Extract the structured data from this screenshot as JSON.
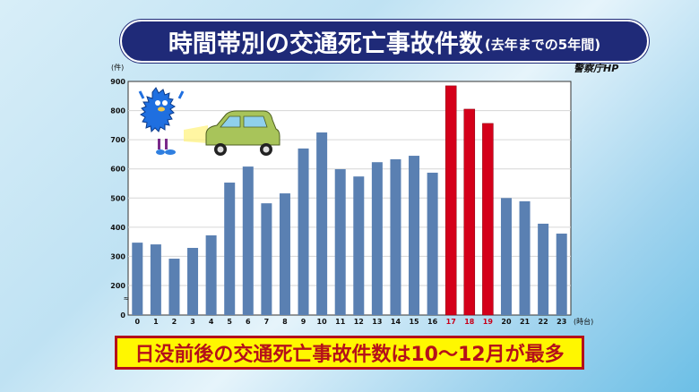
{
  "title": {
    "main": "時間帯別の交通死亡事故件数",
    "sub": "(去年までの5年間)"
  },
  "source": "警察庁HP",
  "banner": "日没前後の交通死亡事故件数は10～12月が最多",
  "chart_data": {
    "type": "bar",
    "title": "時間帯別の交通死亡事故件数(去年までの5年間)",
    "ylabel": "(件)",
    "xlabel": "(時台)",
    "categories": [
      "0",
      "1",
      "2",
      "3",
      "4",
      "5",
      "6",
      "7",
      "8",
      "9",
      "10",
      "11",
      "12",
      "13",
      "14",
      "15",
      "16",
      "17",
      "18",
      "19",
      "20",
      "21",
      "22",
      "23"
    ],
    "values": [
      347,
      341,
      292,
      329,
      372,
      553,
      608,
      482,
      516,
      670,
      725,
      599,
      574,
      623,
      633,
      645,
      587,
      885,
      805,
      756,
      500,
      489,
      412,
      378
    ],
    "highlighted": [
      "17",
      "18",
      "19"
    ],
    "yticks": [
      0,
      200,
      300,
      400,
      500,
      600,
      700,
      800,
      900
    ],
    "ylim": [
      0,
      900
    ],
    "axis_break": "between 0 and 200",
    "grid": true,
    "colors": {
      "bar": "#5a80b2",
      "highlight": "#d4001a",
      "highlight_label": "#c8001a"
    }
  }
}
